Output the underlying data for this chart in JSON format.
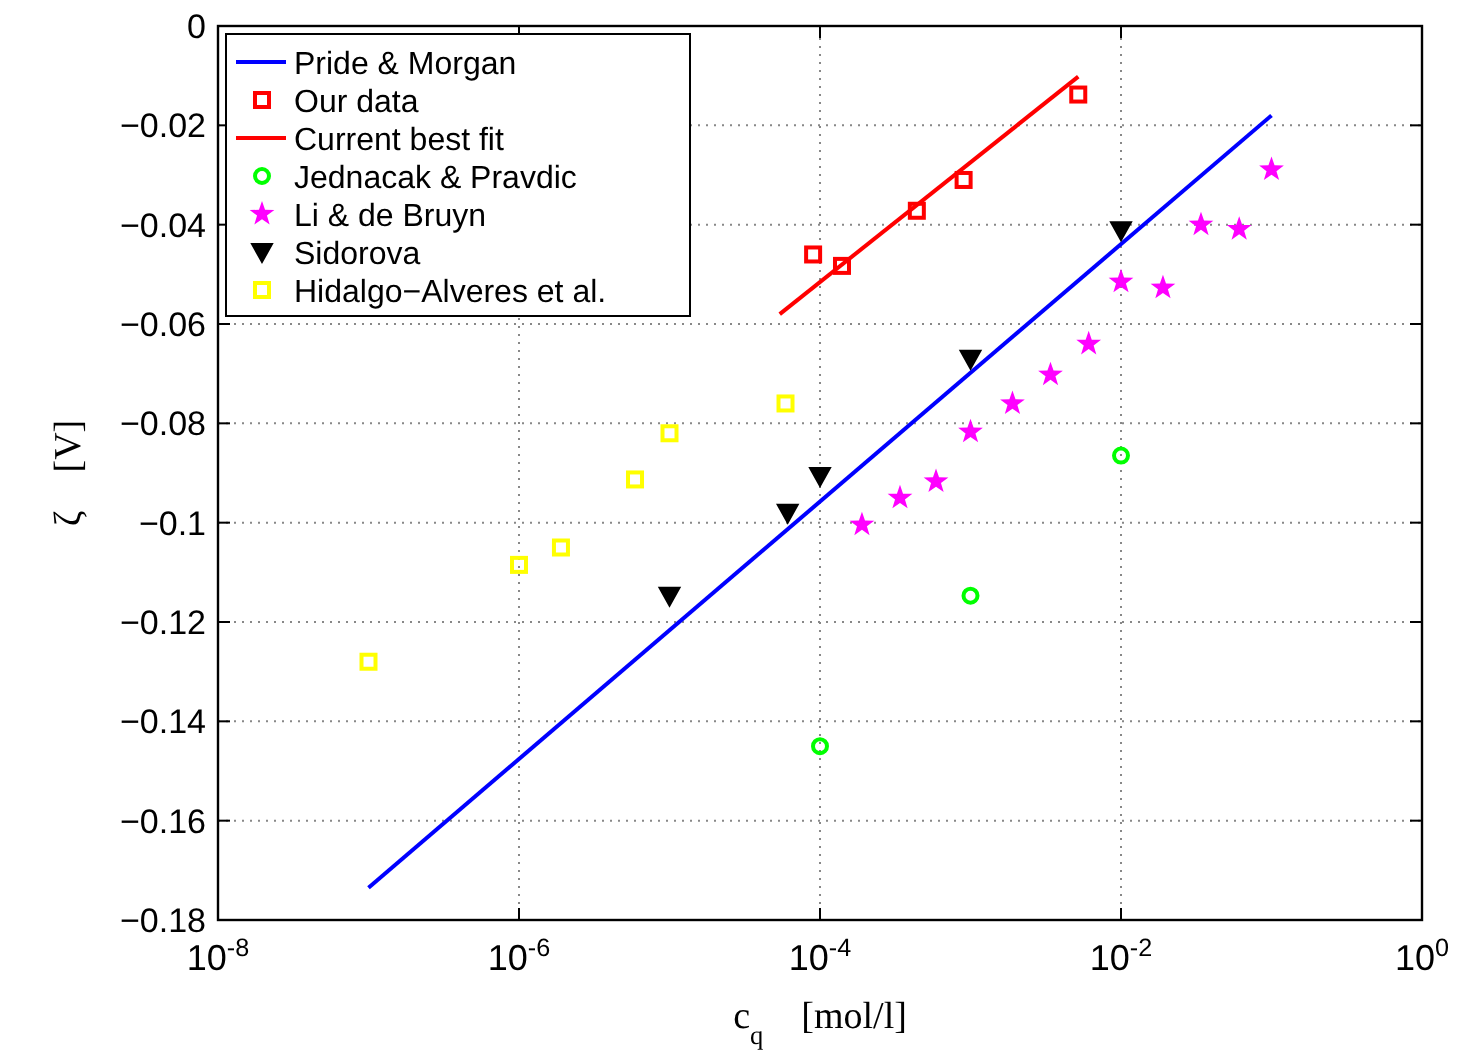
{
  "chart_data": {
    "type": "scatter",
    "xlabel": "c$_{q}$    [mol/l]",
    "ylabel": "ζ    [V]",
    "log": "x",
    "xlim": [
      1e-08,
      1
    ],
    "xticks": [
      {
        "value": 1e-08,
        "label": "10$^{-8}$"
      },
      {
        "value": 1e-06,
        "label": "10$^{-6}$"
      },
      {
        "value": 0.0001,
        "label": "10$^{-4}$"
      },
      {
        "value": 0.01,
        "label": "10$^{-2}$"
      },
      {
        "value": 1,
        "label": "10$^{0}$"
      }
    ],
    "ylim": [
      -0.18,
      0
    ],
    "yticks": [
      -0.18,
      -0.16,
      -0.14,
      -0.12,
      -0.1,
      -0.08,
      -0.06,
      -0.04,
      -0.02,
      0
    ],
    "grid": true,
    "legend": "top left",
    "series": [
      {
        "name": "Pride & Morgan",
        "type": "line",
        "color": "#0000ff",
        "marker": "none",
        "x": [
          1e-07,
          0.1
        ],
        "values": [
          -0.1735,
          -0.018
        ]
      },
      {
        "name": "Our data",
        "color": "#ff0000",
        "marker": "square",
        "x": [
          9e-05,
          0.00014,
          0.00044,
          0.0009,
          0.0052
        ],
        "values": [
          -0.046,
          -0.0483,
          -0.0372,
          -0.031,
          -0.0138
        ]
      },
      {
        "name": "Current best fit",
        "type": "line",
        "color": "#ff0000",
        "marker": "none",
        "x": [
          5.4e-05,
          0.0052
        ],
        "values": [
          -0.058,
          -0.0102
        ]
      },
      {
        "name": "Jednacak & Pravdic",
        "color": "#00ff00",
        "marker": "circle",
        "x": [
          0.0001,
          0.001,
          0.01
        ],
        "values": [
          -0.145,
          -0.1147,
          -0.0865
        ]
      },
      {
        "name": "Li & de Bruyn",
        "color": "#ff00ff",
        "marker": "star",
        "x": [
          0.00019,
          0.00034,
          0.00059,
          0.001,
          0.0019,
          0.0034,
          0.0061,
          0.01,
          0.019,
          0.034,
          0.061,
          0.1
        ],
        "values": [
          -0.1004,
          -0.095,
          -0.0917,
          -0.0817,
          -0.076,
          -0.0702,
          -0.064,
          -0.0515,
          -0.0527,
          -0.04,
          -0.0409,
          -0.0289
        ]
      },
      {
        "name": "Sidorova",
        "color": "#000000",
        "marker": "triangle",
        "x": [
          1e-05,
          6.1e-05,
          0.0001,
          0.001,
          0.01
        ],
        "values": [
          -0.1147,
          -0.098,
          -0.0906,
          -0.067,
          -0.0411
        ]
      },
      {
        "name": "Hidalgo−Alveres et al.",
        "color": "#ffff00",
        "marker": "square",
        "x": [
          1e-07,
          1e-06,
          1.9e-06,
          5.9e-06,
          1e-05,
          5.9e-05
        ],
        "values": [
          -0.128,
          -0.1085,
          -0.105,
          -0.0913,
          -0.082,
          -0.076
        ]
      }
    ]
  }
}
